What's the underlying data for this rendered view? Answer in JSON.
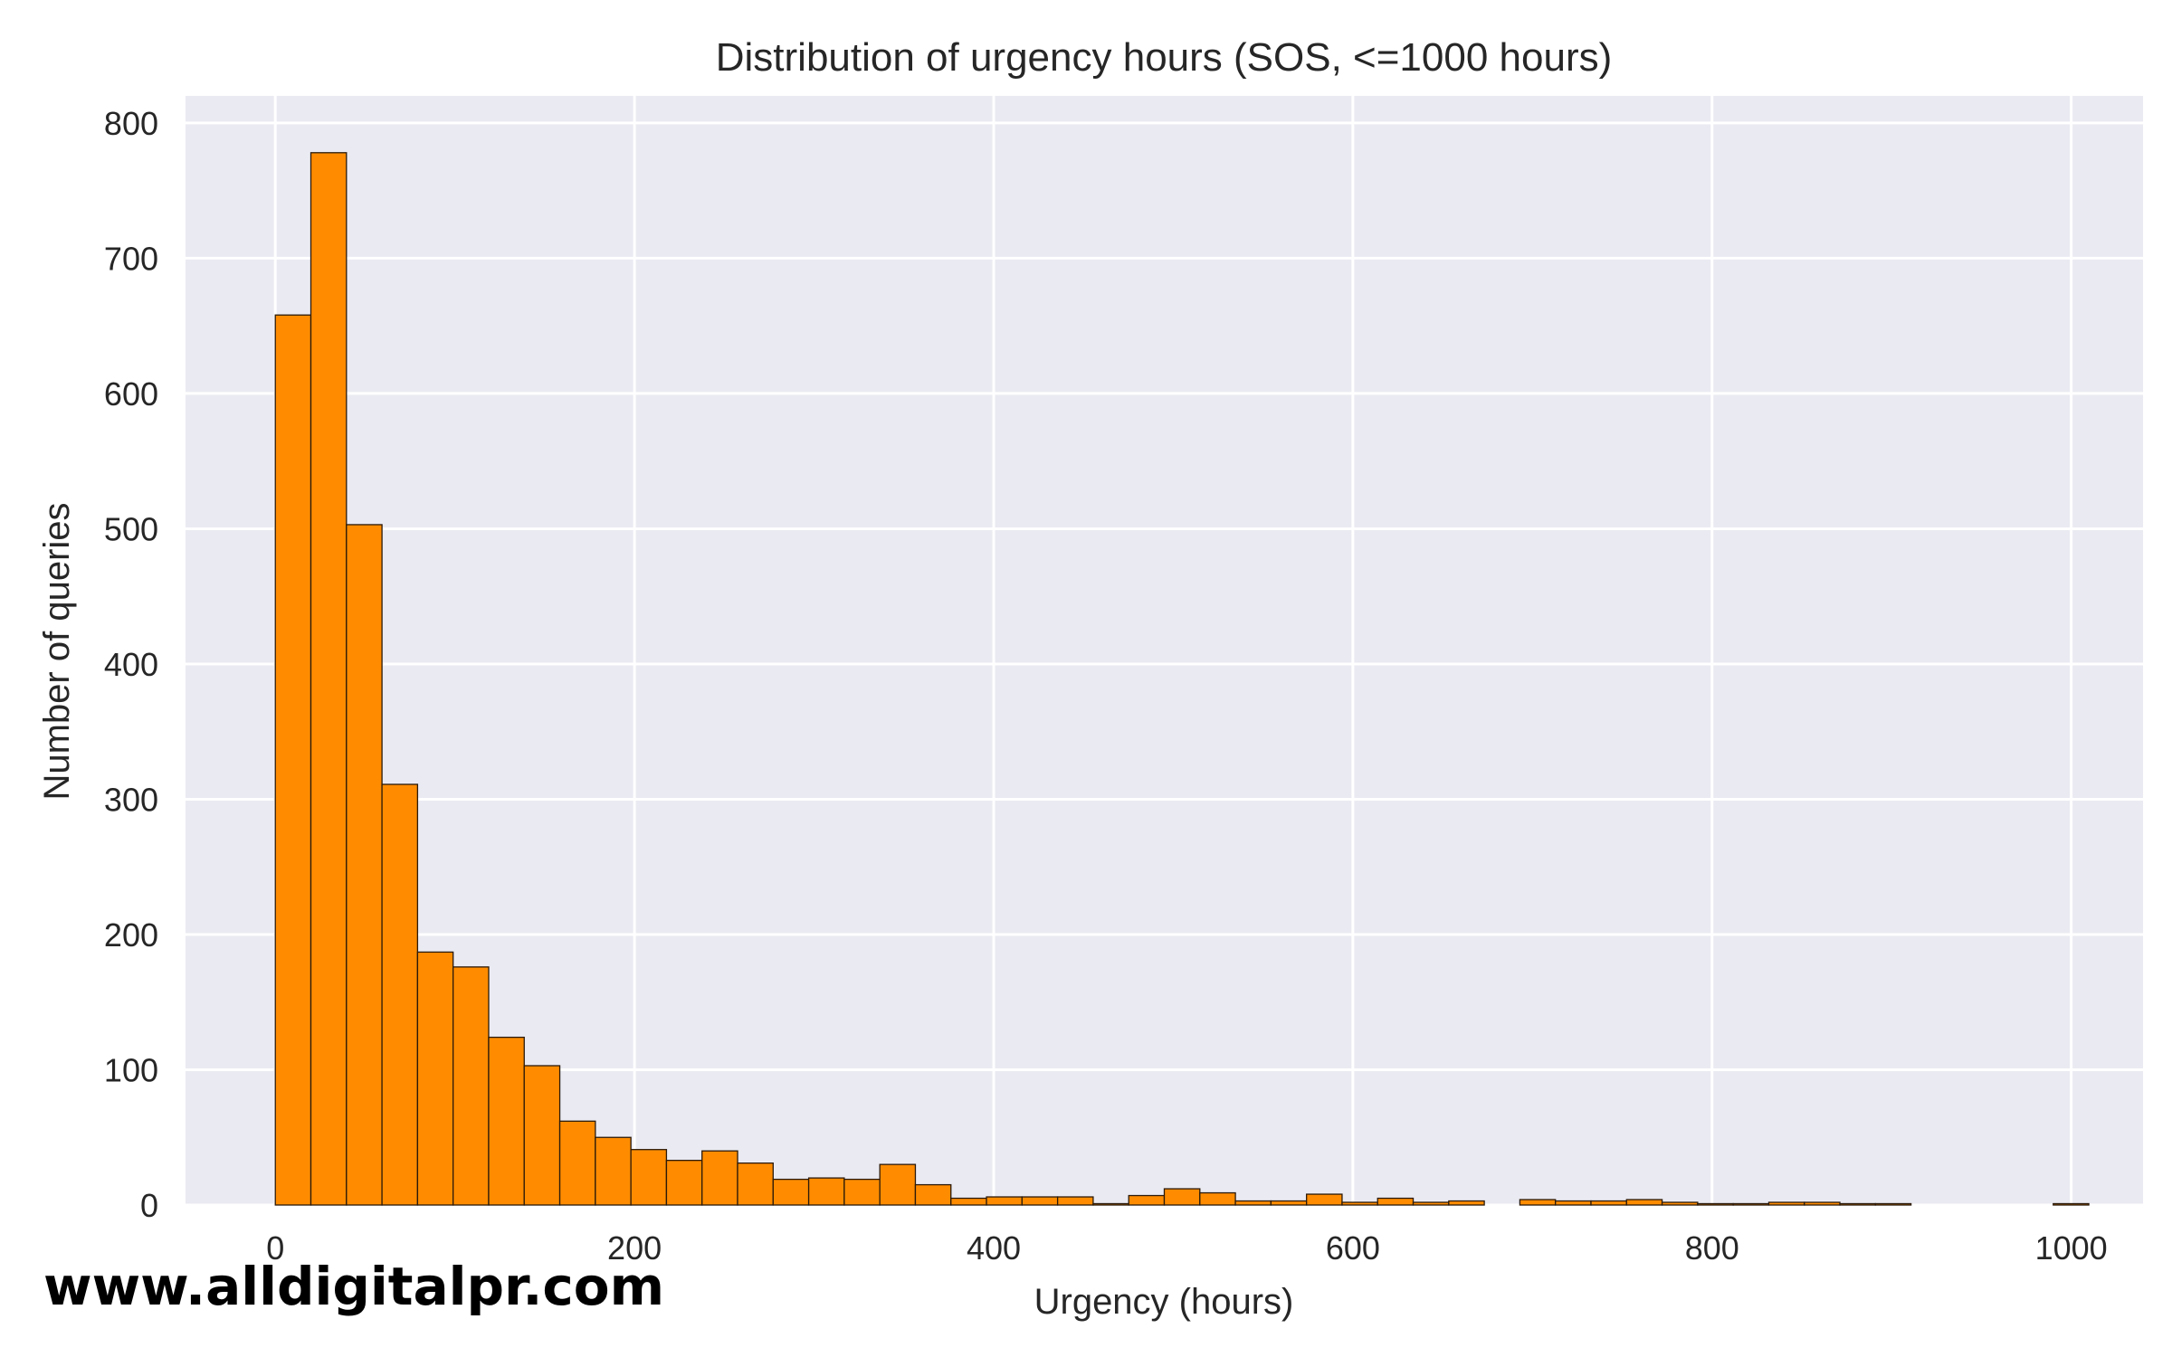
{
  "chart_data": {
    "type": "bar",
    "title": "Distribution of urgency hours (SOS, <=1000 hours)",
    "xlabel": "Urgency (hours)",
    "ylabel": "Number of queries",
    "xlim": [
      -50,
      1040
    ],
    "ylim": [
      0,
      820
    ],
    "x_ticks": [
      0,
      200,
      400,
      600,
      800,
      1000
    ],
    "y_ticks": [
      0,
      100,
      200,
      300,
      400,
      500,
      600,
      700,
      800
    ],
    "grid": true,
    "legend": "none",
    "bin_width": 19.8,
    "bin_start": 0,
    "values": [
      658,
      778,
      503,
      311,
      187,
      176,
      124,
      103,
      62,
      50,
      41,
      33,
      40,
      31,
      19,
      20,
      19,
      30,
      15,
      5,
      6,
      6,
      6,
      1,
      7,
      12,
      9,
      3,
      3,
      8,
      2,
      5,
      2,
      3,
      0,
      4,
      3,
      3,
      4,
      2,
      1,
      1,
      2,
      2,
      1,
      1,
      0,
      0,
      0,
      0,
      1
    ]
  },
  "colors": {
    "bar": "#ff8c00",
    "bar_edge": "#2b1a0a",
    "plot_bg": "#eaeaf2",
    "grid": "#ffffff",
    "text": "#262626"
  },
  "watermark": "www.alldigitalpr.com"
}
